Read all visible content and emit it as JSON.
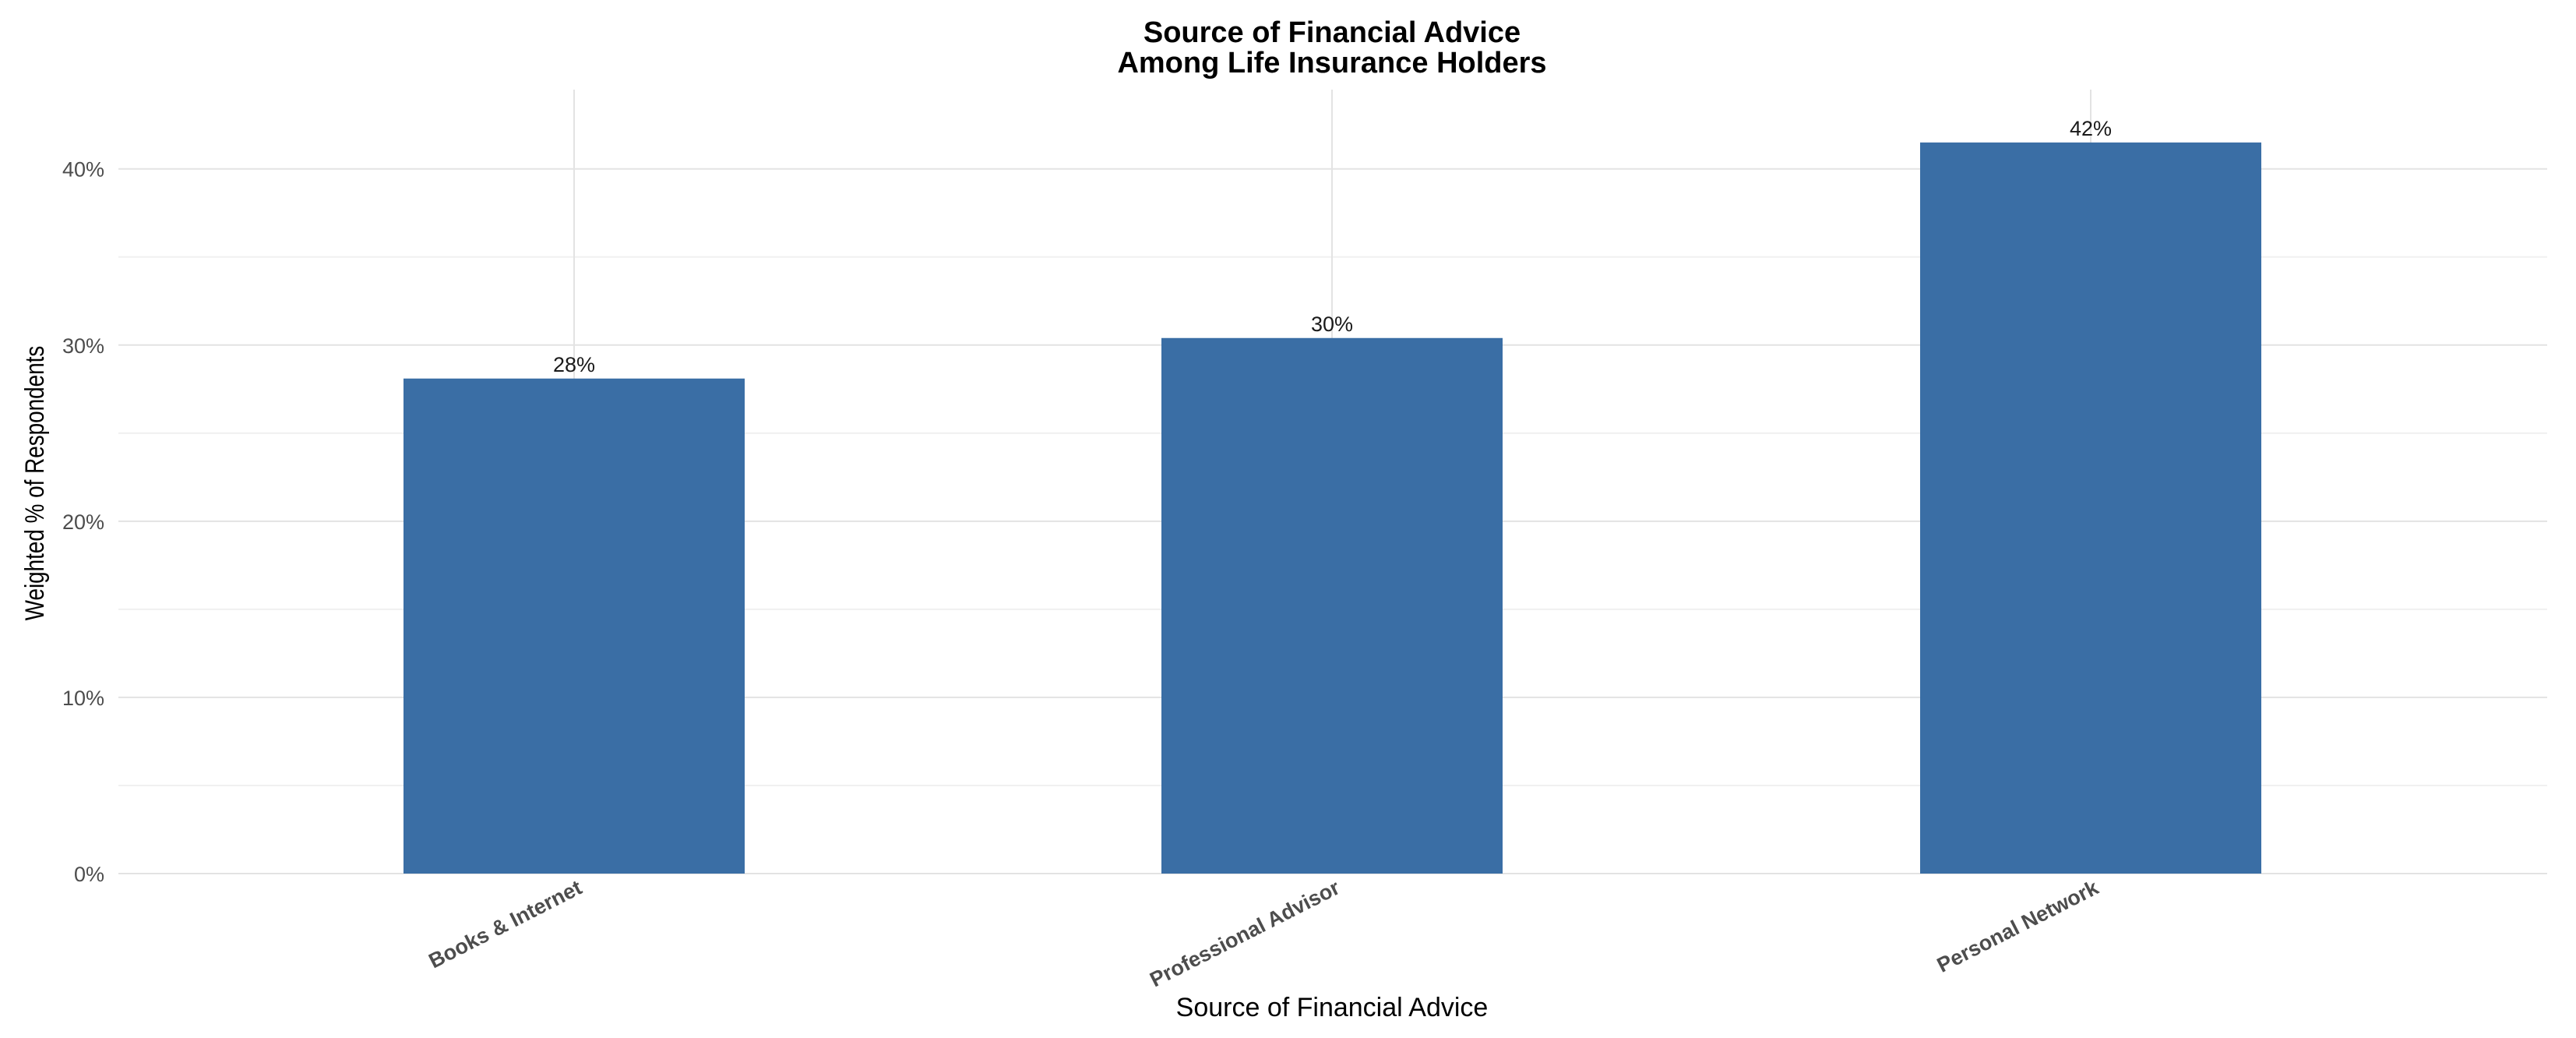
{
  "chart_data": {
    "type": "bar",
    "title": [
      "Source of Financial Advice",
      "Among Life Insurance Holders"
    ],
    "xlabel": "Source of Financial Advice",
    "ylabel": "Weighted % of Respondents",
    "categories": [
      "Books & Internet",
      "Professional Advisor",
      "Personal Network"
    ],
    "values": [
      28.1,
      30.4,
      41.5
    ],
    "data_labels": [
      "28%",
      "30%",
      "42%"
    ],
    "y_ticks": [
      0,
      10,
      20,
      30,
      40
    ],
    "y_tick_labels": [
      "0%",
      "10%",
      "20%",
      "30%",
      "40%"
    ],
    "ylim": [
      0,
      44.5
    ],
    "grid": true,
    "legend": "none",
    "colors": {
      "bar": "#3a6ea5",
      "grid_major": "#e3e3e3",
      "grid_minor": "#f0f0f0"
    }
  }
}
